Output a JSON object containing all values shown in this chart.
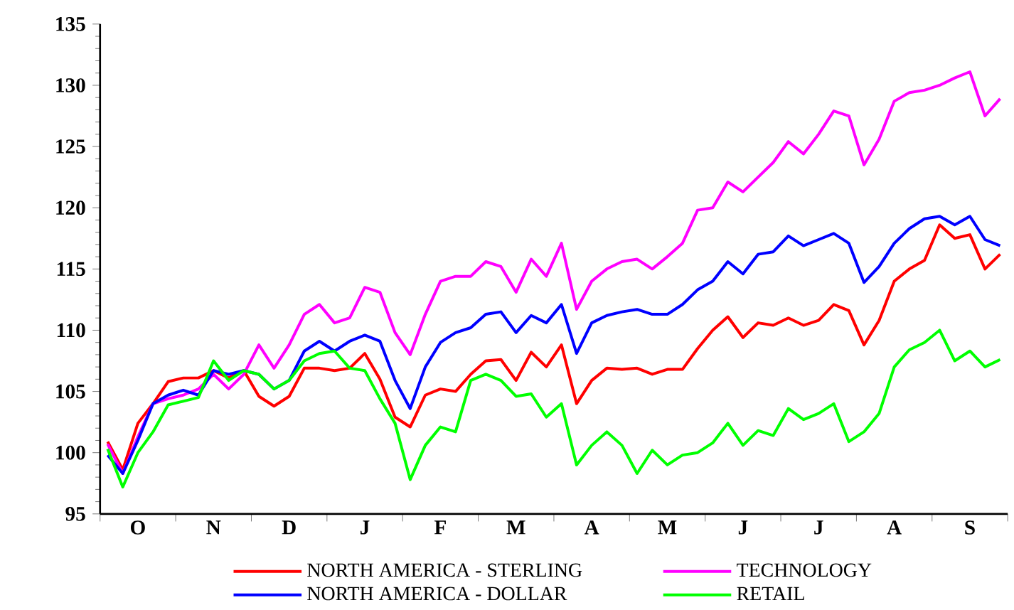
{
  "chart_data": {
    "type": "line",
    "legend": "bottom",
    "categories": [
      null,
      null,
      "O",
      null,
      null,
      null,
      null,
      "N",
      null,
      null,
      null,
      null,
      "D",
      null,
      null,
      null,
      null,
      "J",
      null,
      null,
      null,
      null,
      "F",
      null,
      null,
      null,
      null,
      "M",
      null,
      null,
      null,
      null,
      "A",
      null,
      null,
      null,
      null,
      "M",
      null,
      null,
      null,
      null,
      "J",
      null,
      null,
      null,
      null,
      "J",
      null,
      null,
      null,
      null,
      "A",
      null,
      null,
      null,
      null,
      "S",
      null,
      null
    ],
    "ylim": [
      95,
      135
    ],
    "yticks": [
      95,
      {
        "value": 96,
        "label": null
      },
      {
        "value": 97,
        "label": null
      },
      {
        "value": 98,
        "label": null
      },
      {
        "value": 99,
        "label": null
      },
      100,
      {
        "value": 101,
        "label": null
      },
      {
        "value": 102,
        "label": null
      },
      {
        "value": 103,
        "label": null
      },
      {
        "value": 104,
        "label": null
      },
      105,
      {
        "value": 106,
        "label": null
      },
      {
        "value": 107,
        "label": null
      },
      {
        "value": 108,
        "label": null
      },
      {
        "value": 109,
        "label": null
      },
      110,
      {
        "value": 111,
        "label": null
      },
      {
        "value": 112,
        "label": null
      },
      {
        "value": 113,
        "label": null
      },
      {
        "value": 114,
        "label": null
      },
      115,
      {
        "value": 116,
        "label": null
      },
      {
        "value": 117,
        "label": null
      },
      {
        "value": 118,
        "label": null
      },
      {
        "value": 119,
        "label": null
      },
      120,
      {
        "value": 121,
        "label": null
      },
      {
        "value": 122,
        "label": null
      },
      {
        "value": 123,
        "label": null
      },
      {
        "value": 124,
        "label": null
      },
      125,
      {
        "value": 126,
        "label": null
      },
      {
        "value": 127,
        "label": null
      },
      {
        "value": 128,
        "label": null
      },
      {
        "value": 129,
        "label": null
      },
      130,
      {
        "value": 131,
        "label": null
      },
      {
        "value": 132,
        "label": null
      },
      {
        "value": 133,
        "label": null
      },
      {
        "value": 134,
        "label": null
      },
      135
    ],
    "series": [
      {
        "name": "NORTH AMERICA - STERLING",
        "color": "#ff0000",
        "values": [
          100.9,
          98.6,
          102.4,
          104,
          105.8,
          106.1,
          106.1,
          106.7,
          106.1,
          106.7,
          104.6,
          103.8,
          104.6,
          106.9,
          106.9,
          106.7,
          106.9,
          108.1,
          106,
          102.9,
          102.1,
          104.7,
          105.2,
          105,
          106.4,
          107.5,
          107.6,
          105.9,
          108.2,
          107,
          108.8,
          104,
          105.9,
          106.9,
          106.8,
          106.9,
          106.4,
          106.8,
          106.8,
          108.5,
          110,
          111.1,
          109.4,
          110.6,
          110.4,
          111,
          110.4,
          110.8,
          112.1,
          111.6,
          108.8,
          110.8,
          114,
          115,
          115.7,
          118.6,
          117.5,
          117.8,
          115,
          116.2
        ]
      },
      {
        "name": "TECHNOLOGY",
        "color": "#ff00ff",
        "values": [
          100.7,
          98.3,
          101.3,
          104,
          104.4,
          104.7,
          105.2,
          106.4,
          105.2,
          106.4,
          108.8,
          106.9,
          108.8,
          111.3,
          112.1,
          110.6,
          111,
          113.5,
          113.1,
          109.8,
          108,
          111.3,
          114,
          114.4,
          114.4,
          115.6,
          115.2,
          113.1,
          115.8,
          114.4,
          117.1,
          111.7,
          114,
          115,
          115.6,
          115.8,
          115,
          116,
          117.1,
          119.8,
          120,
          122.1,
          121.3,
          122.5,
          123.7,
          125.4,
          124.4,
          126,
          127.9,
          127.5,
          123.5,
          125.6,
          128.7,
          129.4,
          129.6,
          130,
          130.6,
          131.1,
          127.5,
          128.9
        ]
      },
      {
        "name": "NORTH AMERICA - DOLLAR",
        "color": "#0000ff",
        "values": [
          99.8,
          98.3,
          101,
          104,
          104.7,
          105.1,
          104.7,
          106.7,
          106.4,
          106.7,
          106.4,
          105.2,
          105.9,
          108.3,
          109.1,
          108.3,
          109.1,
          109.6,
          109.1,
          105.9,
          103.6,
          107,
          109,
          109.8,
          110.2,
          111.3,
          111.5,
          109.8,
          111.2,
          110.6,
          112.1,
          108.1,
          110.6,
          111.2,
          111.5,
          111.7,
          111.3,
          111.3,
          112.1,
          113.3,
          114,
          115.6,
          114.6,
          116.2,
          116.4,
          117.7,
          116.9,
          117.4,
          117.9,
          117.1,
          113.9,
          115.2,
          117.1,
          118.3,
          119.1,
          119.3,
          118.6,
          119.3,
          117.4,
          116.9
        ]
      },
      {
        "name": "RETAIL",
        "color": "#00ff00",
        "values": [
          100.3,
          97.2,
          100,
          101.7,
          103.9,
          104.2,
          104.5,
          107.5,
          105.9,
          106.7,
          106.4,
          105.2,
          105.9,
          107.5,
          108.1,
          108.3,
          106.9,
          106.7,
          104.4,
          102.4,
          97.8,
          100.6,
          102.1,
          101.7,
          105.9,
          106.4,
          105.9,
          104.6,
          104.8,
          102.9,
          104,
          99,
          100.6,
          101.7,
          100.6,
          98.3,
          100.2,
          99,
          99.8,
          100,
          100.8,
          102.4,
          100.6,
          101.8,
          101.4,
          103.6,
          102.7,
          103.2,
          104,
          100.9,
          101.7,
          103.2,
          107,
          108.4,
          109,
          110,
          107.5,
          108.3,
          107,
          107.6
        ]
      }
    ]
  }
}
